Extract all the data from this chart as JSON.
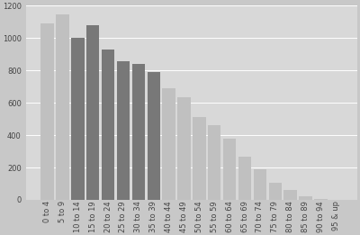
{
  "categories": [
    "0 to 4",
    "5 to 9",
    "10 to 14",
    "15 to 19",
    "20 to 24",
    "25 to 29",
    "30 to 34",
    "35 to 39",
    "40 to 44",
    "45 to 49",
    "50 to 54",
    "55 to 59",
    "60 to 64",
    "65 to 69",
    "70 to 74",
    "75 to 79",
    "80 to 84",
    "85 to 89",
    "90 to 94",
    "95 & up"
  ],
  "values": [
    1090,
    1145,
    1000,
    1080,
    930,
    855,
    840,
    790,
    690,
    635,
    510,
    460,
    380,
    265,
    190,
    105,
    60,
    20,
    8,
    2
  ],
  "dark_color": "#787878",
  "light_color": "#c0c0c0",
  "dark_indices": [
    2,
    3,
    4,
    5,
    6,
    7
  ],
  "background_color": "#c8c8c8",
  "plot_bg_color": "#d8d8d8",
  "ylim": [
    0,
    1200
  ],
  "yticks": [
    0,
    200,
    400,
    600,
    800,
    1000,
    1200
  ],
  "grid_color": "#ffffff",
  "tick_fontsize": 6,
  "xlabel_rotation": 90,
  "figsize": [
    4.0,
    2.61
  ],
  "dpi": 100
}
